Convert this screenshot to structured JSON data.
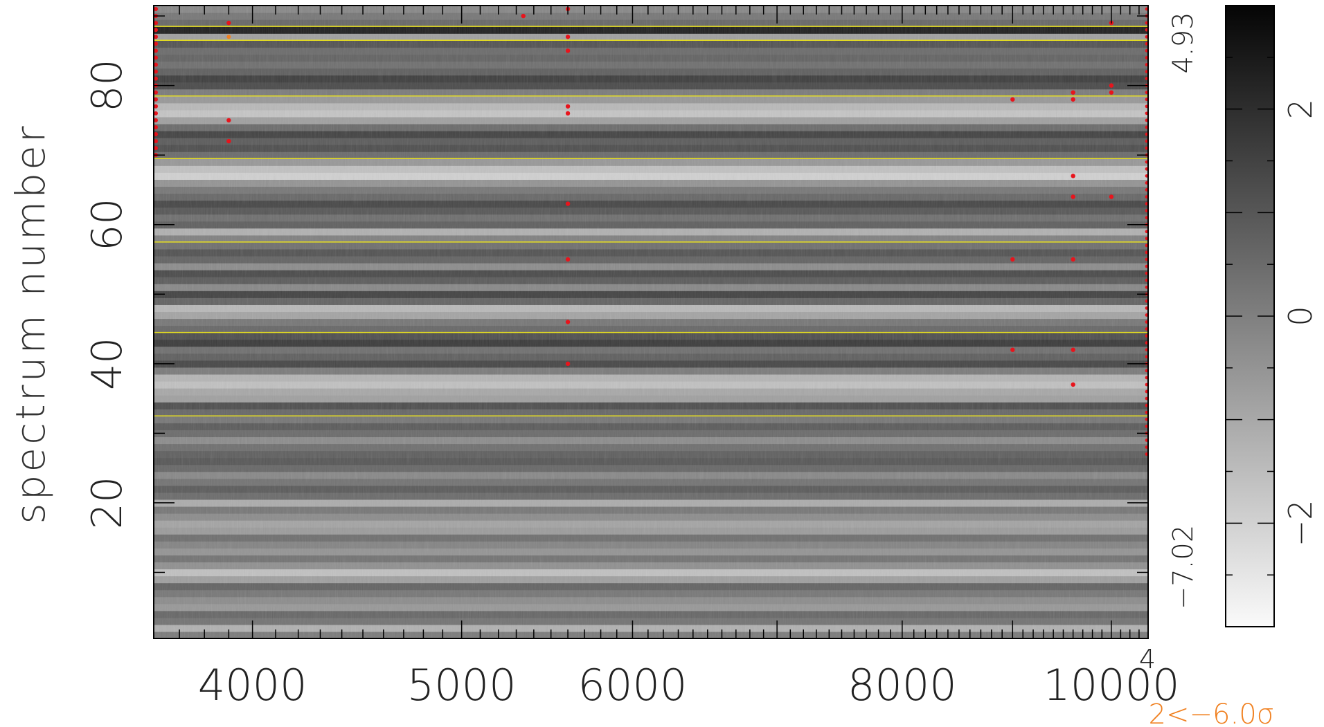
{
  "chart_data": {
    "type": "heatmap",
    "title": "",
    "xlabel": "",
    "ylabel": "spectrum number",
    "x_scale": "log",
    "xlim": [
      3600,
      10400
    ],
    "ylim": [
      1,
      91
    ],
    "x_ticks": [
      4000,
      5000,
      6000,
      8000,
      10000
    ],
    "x_tick_labels": [
      "4000",
      "5000",
      "6000",
      "8000",
      "10000"
    ],
    "x_extra_label": "4",
    "y_ticks": [
      20,
      40,
      60,
      80
    ],
    "y_tick_labels": [
      "20",
      "40",
      "60",
      "80"
    ],
    "range_labels": {
      "max": "4.93",
      "min": "−7.02"
    },
    "colorbar": {
      "range": [
        -3,
        3
      ],
      "ticks": [
        -2,
        0,
        2
      ],
      "tick_labels": [
        "−2",
        "0",
        "2"
      ],
      "colormap": "gray_reversed"
    },
    "bottom_note": "2<−6.0σ",
    "grid": false,
    "bundle_boundaries": [
      32.5,
      44.5,
      57.5,
      69.5,
      78.5,
      86.5,
      88.5
    ],
    "row_levels": [
      0.1,
      -1.2,
      0.3,
      0.6,
      -0.6,
      -0.3,
      0.2,
      0.7,
      -0.8,
      -1.6,
      -0.4,
      0.3,
      -0.5,
      -0.1,
      0.4,
      -0.7,
      -0.9,
      -0.3,
      0.2,
      -1.1,
      0.5,
      0.9,
      0.3,
      -0.2,
      0.6,
      1.0,
      0.8,
      0.4,
      -0.3,
      0.5,
      0.9,
      0.2,
      0.6,
      1.2,
      -0.8,
      -1.0,
      -1.6,
      -1.3,
      0.1,
      1.4,
      0.8,
      0.4,
      1.7,
      1.2,
      0.6,
      0.2,
      -0.9,
      -1.4,
      0.7,
      1.5,
      -0.2,
      0.9,
      1.3,
      -0.3,
      0.7,
      1.1,
      0.4,
      0.0,
      -1.2,
      0.8,
      0.4,
      1.0,
      1.4,
      0.6,
      0.2,
      -0.5,
      -2.0,
      -1.6,
      -0.6,
      0.5,
      1.2,
      0.9,
      1.5,
      0.5,
      -0.8,
      -1.7,
      -1.4,
      -0.6,
      0.1,
      1.3,
      1.6,
      0.8,
      0.4,
      0.7,
      0.5,
      1.1,
      -0.8,
      2.4,
      0.6,
      0.2,
      -0.2
    ],
    "row_colors": [
      "#ffffff",
      "#000000"
    ],
    "boundary_color": "#e8e020",
    "flag_colors": {
      "rejected": "#e8141c",
      "low": "#f08020"
    },
    "flagged_pixels": [
      {
        "x": 5340,
        "y": 90
      },
      {
        "x": 5600,
        "y": 91
      },
      {
        "x": 5600,
        "y": 87
      },
      {
        "x": 5600,
        "y": 85
      },
      {
        "x": 5600,
        "y": 77
      },
      {
        "x": 5600,
        "y": 76
      },
      {
        "x": 5600,
        "y": 63
      },
      {
        "x": 5600,
        "y": 55
      },
      {
        "x": 5600,
        "y": 46
      },
      {
        "x": 5600,
        "y": 40
      },
      {
        "x": 3900,
        "y": 89
      },
      {
        "x": 3900,
        "y": 75
      },
      {
        "x": 3900,
        "y": 72
      },
      {
        "x": 9000,
        "y": 78
      },
      {
        "x": 9000,
        "y": 55
      },
      {
        "x": 9000,
        "y": 42
      },
      {
        "x": 9600,
        "y": 79
      },
      {
        "x": 9600,
        "y": 78
      },
      {
        "x": 9600,
        "y": 67
      },
      {
        "x": 9600,
        "y": 64
      },
      {
        "x": 9600,
        "y": 55
      },
      {
        "x": 9600,
        "y": 42
      },
      {
        "x": 9600,
        "y": 37
      },
      {
        "x": 10000,
        "y": 89
      },
      {
        "x": 10000,
        "y": 80
      },
      {
        "x": 10000,
        "y": 79
      },
      {
        "x": 10000,
        "y": 64
      }
    ],
    "low_pixels": [
      {
        "x": 3900,
        "y": 87
      }
    ]
  }
}
